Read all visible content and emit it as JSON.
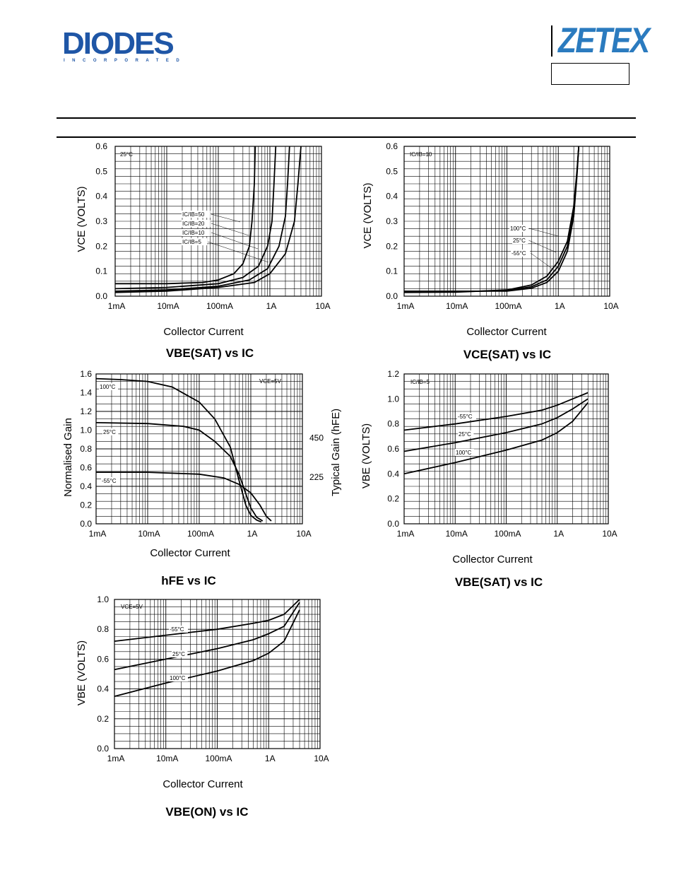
{
  "header": {
    "diodes_logo": "DIODES",
    "diodes_sub": "INCORPORATED",
    "zetex_logo": "ZETEX"
  },
  "chart_data": [
    {
      "id": "vcesat_temp25",
      "type": "line",
      "xscale": "log",
      "x_ticks": [
        "1mA",
        "10mA",
        "100mA",
        "1A",
        "10A"
      ],
      "xlim": [
        0.001,
        10
      ],
      "ylim": [
        0,
        0.6
      ],
      "y_ticks": [
        "0.0",
        "0.1",
        "0.2",
        "0.3",
        "0.4",
        "0.5",
        "0.6"
      ],
      "xlabel": "Collector Current",
      "ylabel": "VCE (VOLTS)",
      "title": "VBE(SAT) vs IC",
      "annotations": [
        "25°C"
      ],
      "series": [
        {
          "name": "IC/IB=50",
          "x": [
            0.001,
            0.01,
            0.05,
            0.1,
            0.2,
            0.3,
            0.4,
            0.45,
            0.5,
            0.52
          ],
          "y": [
            0.05,
            0.05,
            0.055,
            0.065,
            0.09,
            0.13,
            0.2,
            0.3,
            0.45,
            0.6
          ]
        },
        {
          "name": "IC/IB=20",
          "x": [
            0.001,
            0.01,
            0.1,
            0.3,
            0.6,
            0.9,
            1.1,
            1.2,
            1.3
          ],
          "y": [
            0.03,
            0.035,
            0.05,
            0.075,
            0.12,
            0.2,
            0.3,
            0.45,
            0.6
          ]
        },
        {
          "name": "IC/IB=10",
          "x": [
            0.001,
            0.01,
            0.1,
            0.4,
            0.9,
            1.5,
            2,
            2.2,
            2.4
          ],
          "y": [
            0.02,
            0.025,
            0.04,
            0.065,
            0.11,
            0.2,
            0.32,
            0.45,
            0.6
          ]
        },
        {
          "name": "IC/IB=5",
          "x": [
            0.001,
            0.01,
            0.1,
            0.5,
            1,
            2,
            3,
            3.5,
            4
          ],
          "y": [
            0.015,
            0.02,
            0.035,
            0.055,
            0.09,
            0.17,
            0.3,
            0.45,
            0.6
          ]
        }
      ]
    },
    {
      "id": "vcesat_ic10",
      "type": "line",
      "xscale": "log",
      "x_ticks": [
        "1mA",
        "10mA",
        "100mA",
        "1A",
        "10A"
      ],
      "xlim": [
        0.001,
        10
      ],
      "ylim": [
        0,
        0.6
      ],
      "y_ticks": [
        "0.0",
        "0.1",
        "0.2",
        "0.3",
        "0.4",
        "0.5",
        "0.6"
      ],
      "xlabel": "Collector Current",
      "ylabel": "VCE (VOLTS)",
      "title": "VCE(SAT) vs IC",
      "annotations": [
        "IC/IB=10"
      ],
      "series": [
        {
          "name": "100°C",
          "x": [
            0.001,
            0.01,
            0.1,
            0.3,
            0.6,
            1,
            1.5,
            2,
            2.3,
            2.5
          ],
          "y": [
            0.015,
            0.016,
            0.025,
            0.045,
            0.08,
            0.14,
            0.22,
            0.36,
            0.5,
            0.6
          ]
        },
        {
          "name": "25°C",
          "x": [
            0.001,
            0.01,
            0.1,
            0.3,
            0.6,
            1,
            1.5,
            2,
            2.3,
            2.5
          ],
          "y": [
            0.017,
            0.018,
            0.022,
            0.038,
            0.065,
            0.12,
            0.2,
            0.34,
            0.49,
            0.6
          ]
        },
        {
          "name": "-55°C",
          "x": [
            0.001,
            0.01,
            0.1,
            0.3,
            0.6,
            1,
            1.5,
            2,
            2.3,
            2.5
          ],
          "y": [
            0.02,
            0.02,
            0.02,
            0.032,
            0.055,
            0.1,
            0.18,
            0.32,
            0.48,
            0.6
          ]
        }
      ]
    },
    {
      "id": "hfe",
      "type": "line",
      "xscale": "log",
      "x_ticks": [
        "1mA",
        "10mA",
        "100mA",
        "1A",
        "10A"
      ],
      "xlim": [
        0.001,
        10
      ],
      "ylim": [
        0,
        1.6
      ],
      "y_ticks": [
        "0.0",
        "0.2",
        "0.4",
        "0.6",
        "0.8",
        "1.0",
        "1.2",
        "1.4",
        "1.6"
      ],
      "y2_ticks": [
        "225",
        "450"
      ],
      "xlabel": "Collector Current",
      "ylabel": "Normalised Gain",
      "y2label": "Typical Gain (hFE)",
      "title": "hFE vs IC",
      "annotations": [
        "VCE=5V"
      ],
      "series": [
        {
          "name": "100°C",
          "x": [
            0.001,
            0.003,
            0.01,
            0.03,
            0.1,
            0.2,
            0.4,
            0.6,
            0.8,
            1,
            1.3,
            1.6
          ],
          "y": [
            1.55,
            1.54,
            1.52,
            1.46,
            1.3,
            1.12,
            0.82,
            0.45,
            0.2,
            0.09,
            0.04,
            0.02
          ]
        },
        {
          "name": "25°C",
          "x": [
            0.001,
            0.01,
            0.05,
            0.1,
            0.2,
            0.4,
            0.6,
            0.8,
            1,
            1.3,
            1.7
          ],
          "y": [
            1.08,
            1.07,
            1.04,
            1.0,
            0.88,
            0.72,
            0.52,
            0.32,
            0.17,
            0.07,
            0.03
          ]
        },
        {
          "name": "-55°C",
          "x": [
            0.001,
            0.01,
            0.1,
            0.3,
            0.6,
            1,
            1.5,
            2,
            2.5
          ],
          "y": [
            0.55,
            0.55,
            0.53,
            0.49,
            0.42,
            0.33,
            0.2,
            0.08,
            0.03
          ]
        }
      ]
    },
    {
      "id": "vbesat",
      "type": "line",
      "xscale": "log",
      "x_ticks": [
        "1mA",
        "10mA",
        "100mA",
        "1A",
        "10A"
      ],
      "xlim": [
        0.001,
        10
      ],
      "ylim": [
        0,
        1.2
      ],
      "y_ticks": [
        "0.0",
        "0.2",
        "0.4",
        "0.6",
        "0.8",
        "1.0",
        "1.2"
      ],
      "xlabel": "Collector Current",
      "ylabel": "VBE (VOLTS)",
      "title": "VBE(SAT) vs IC",
      "annotations": [
        "IC/IB=5"
      ],
      "series": [
        {
          "name": "-55°C",
          "x": [
            0.001,
            0.01,
            0.1,
            0.5,
            1,
            2,
            4
          ],
          "y": [
            0.75,
            0.8,
            0.86,
            0.91,
            0.95,
            1.0,
            1.05
          ]
        },
        {
          "name": "25°C",
          "x": [
            0.001,
            0.01,
            0.1,
            0.5,
            1,
            2,
            4
          ],
          "y": [
            0.58,
            0.65,
            0.73,
            0.8,
            0.85,
            0.92,
            1.0
          ]
        },
        {
          "name": "100°C",
          "x": [
            0.001,
            0.01,
            0.1,
            0.5,
            1,
            2,
            4
          ],
          "y": [
            0.4,
            0.49,
            0.59,
            0.67,
            0.73,
            0.82,
            0.97
          ]
        }
      ]
    },
    {
      "id": "vbeon",
      "type": "line",
      "xscale": "log",
      "x_ticks": [
        "1mA",
        "10mA",
        "100mA",
        "1A",
        "10A"
      ],
      "xlim": [
        0.001,
        10
      ],
      "ylim": [
        0,
        1.0
      ],
      "y_ticks": [
        "0.0",
        "0.2",
        "0.4",
        "0.6",
        "0.8",
        "1.0"
      ],
      "xlabel": "Collector Current",
      "ylabel": "VBE (VOLTS)",
      "title": "VBE(ON) vs IC",
      "annotations": [
        "VCE=5V"
      ],
      "series": [
        {
          "name": "-55°C",
          "x": [
            0.001,
            0.01,
            0.1,
            0.5,
            1,
            2,
            4
          ],
          "y": [
            0.72,
            0.76,
            0.8,
            0.84,
            0.86,
            0.9,
            1.0
          ]
        },
        {
          "name": "25°C",
          "x": [
            0.001,
            0.01,
            0.1,
            0.5,
            1,
            2,
            4
          ],
          "y": [
            0.53,
            0.6,
            0.67,
            0.73,
            0.77,
            0.82,
            0.98
          ]
        },
        {
          "name": "100°C",
          "x": [
            0.001,
            0.01,
            0.1,
            0.5,
            1,
            2,
            4
          ],
          "y": [
            0.35,
            0.44,
            0.52,
            0.59,
            0.64,
            0.72,
            0.93
          ]
        }
      ]
    }
  ]
}
